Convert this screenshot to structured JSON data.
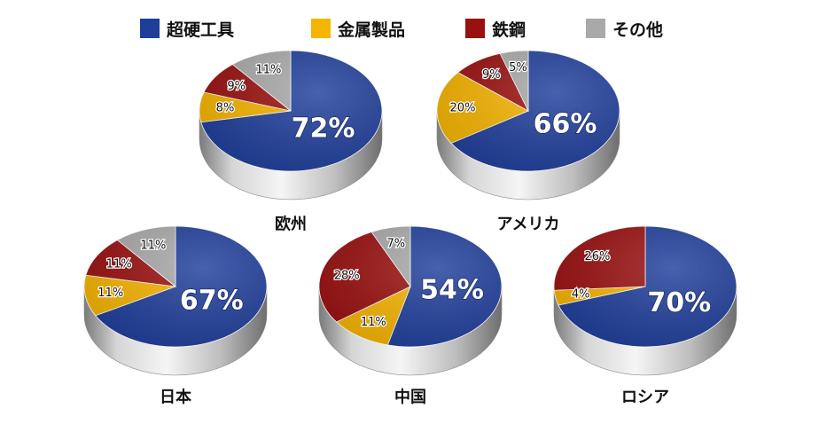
{
  "legend": {
    "items": [
      {
        "label": "超硬工具",
        "color": "#1f3e9a"
      },
      {
        "label": "金属製品",
        "color": "#f5b400"
      },
      {
        "label": "鉄鋼",
        "color": "#9a1010"
      },
      {
        "label": "その他",
        "color": "#a9a9a9"
      }
    ]
  },
  "chart_data": [
    {
      "type": "pie",
      "name": "欧州",
      "categories": [
        "超硬工具",
        "金属製品",
        "鉄鋼",
        "その他"
      ],
      "values": [
        72,
        8,
        9,
        11
      ],
      "labels": [
        "72%",
        "8%",
        "9%",
        "11%"
      ]
    },
    {
      "type": "pie",
      "name": "アメリカ",
      "categories": [
        "超硬工具",
        "金属製品",
        "鉄鋼",
        "その他"
      ],
      "values": [
        66,
        20,
        9,
        5
      ],
      "labels": [
        "66%",
        "20%",
        "9%",
        "5%"
      ]
    },
    {
      "type": "pie",
      "name": "日本",
      "categories": [
        "超硬工具",
        "金属製品",
        "鉄鋼",
        "その他"
      ],
      "values": [
        67,
        11,
        11,
        11
      ],
      "labels": [
        "67%",
        "11%",
        "11%",
        "11%"
      ]
    },
    {
      "type": "pie",
      "name": "中国",
      "categories": [
        "超硬工具",
        "金属製品",
        "鉄鋼",
        "その他"
      ],
      "values": [
        54,
        11,
        28,
        7
      ],
      "labels": [
        "54%",
        "11%",
        "28%",
        "7%"
      ]
    },
    {
      "type": "pie",
      "name": "ロシア",
      "categories": [
        "超硬工具",
        "金属製品",
        "鉄鋼"
      ],
      "values": [
        70,
        4,
        26
      ],
      "labels": [
        "70%",
        "4%",
        "26%"
      ]
    }
  ]
}
